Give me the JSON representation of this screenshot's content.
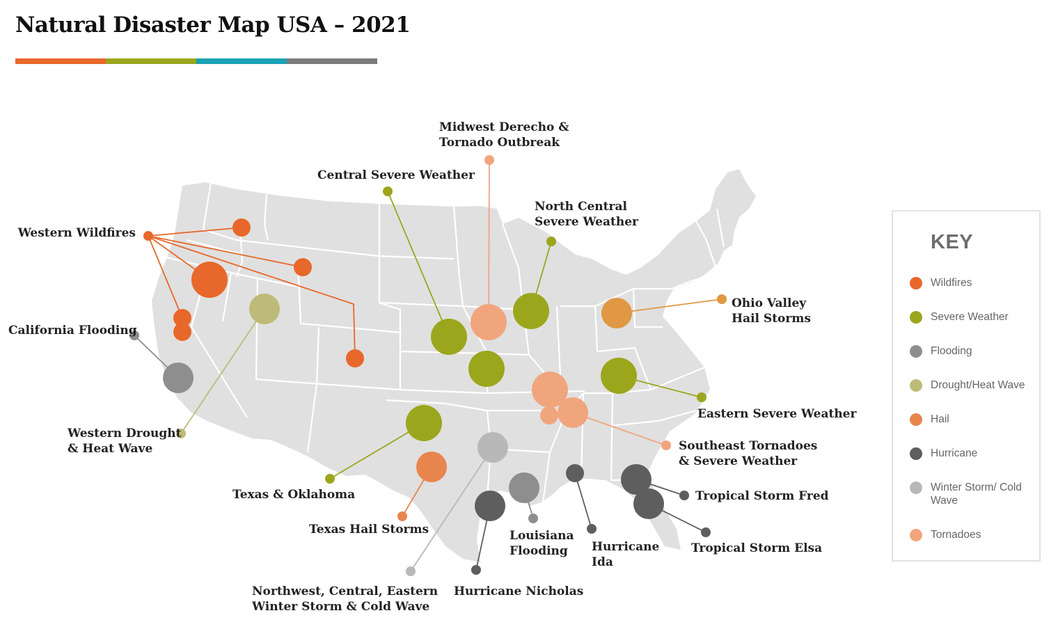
{
  "title": "Natural Disaster Map USA – 2021",
  "title_bar_colors": [
    "#e8672a",
    "#9ca61d",
    "#1aa0b2",
    "#7a7a7a"
  ],
  "colors": {
    "map_fill": "#e0e0e0",
    "map_border": "#ffffff",
    "Wildfires": "#e8672a",
    "Severe Weather": "#9ca61d",
    "Flooding": "#8e8e8e",
    "Drought/Heat Wave": "#bdbb77",
    "Hail": "#e8854e",
    "Hurricane": "#5e5e5e",
    "Winter Storm/Cold Wave": "#b8b8b8",
    "Tornadoes": "#f0a57d",
    "Ohio Valley Hail": "#e09844"
  },
  "events": {
    "western_wildfires": {
      "label_lines": [
        "Western Wildfires"
      ],
      "category": "Wildfires"
    },
    "california_flooding": {
      "label_lines": [
        "California Flooding"
      ],
      "category": "Flooding"
    },
    "western_drought": {
      "label_lines": [
        "Western Drought",
        "& Heat Wave"
      ],
      "category": "Drought/Heat Wave"
    },
    "central_severe": {
      "label_lines": [
        "Central Severe Weather"
      ],
      "category": "Severe Weather"
    },
    "midwest_derecho": {
      "label_lines": [
        "Midwest Derecho &",
        "Tornado Outbreak"
      ],
      "category": "Tornadoes"
    },
    "north_central_severe": {
      "label_lines": [
        "North Central",
        "Severe Weather"
      ],
      "category": "Severe Weather"
    },
    "ohio_valley_hail": {
      "label_lines": [
        "Ohio Valley",
        "Hail Storms"
      ],
      "category": "Hail"
    },
    "eastern_severe": {
      "label_lines": [
        "Eastern Severe Weather"
      ],
      "category": "Severe Weather"
    },
    "southeast_tornadoes": {
      "label_lines": [
        "Southeast Tornadoes",
        "& Severe Weather"
      ],
      "category": "Tornadoes"
    },
    "texas_oklahoma": {
      "label_lines": [
        "Texas & Oklahoma"
      ],
      "category": "Severe Weather"
    },
    "texas_hail": {
      "label_lines": [
        "Texas Hail Storms"
      ],
      "category": "Hail"
    },
    "winter_storm": {
      "label_lines": [
        "Northwest, Central, Eastern",
        "Winter Storm & Cold Wave"
      ],
      "category": "Winter Storm/Cold Wave"
    },
    "hurricane_nicholas": {
      "label_lines": [
        "Hurricane Nicholas"
      ],
      "category": "Hurricane"
    },
    "louisiana_flooding": {
      "label_lines": [
        "Louisiana",
        "Flooding"
      ],
      "category": "Flooding"
    },
    "hurricane_ida": {
      "label_lines": [
        "Hurricane",
        "Ida"
      ],
      "category": "Hurricane"
    },
    "tropical_storm_fred": {
      "label_lines": [
        "Tropical Storm Fred"
      ],
      "category": "Hurricane"
    },
    "tropical_storm_elsa": {
      "label_lines": [
        "Tropical Storm Elsa"
      ],
      "category": "Hurricane"
    }
  },
  "key": {
    "title": "KEY",
    "items": [
      {
        "label": "Wildfires",
        "color": "#e8672a",
        "icon": "circle"
      },
      {
        "label": "Severe Weather",
        "color": "#9ca61d",
        "icon": "circle"
      },
      {
        "label": "Flooding",
        "color": "#8e8e8e",
        "icon": "circle"
      },
      {
        "label": "Drought/Heat Wave",
        "color": "#bdbb77",
        "icon": "circle"
      },
      {
        "label": "Hail",
        "color": "#e8854e",
        "icon": "circle"
      },
      {
        "label": "Hurricane",
        "color": "#5e5e5e",
        "icon": "circle"
      },
      {
        "label": "Winter Storm/ Cold Wave",
        "color": "#b8b8b8",
        "icon": "circle"
      },
      {
        "label": "Tornadoes",
        "color": "#f0a57d",
        "icon": "circle"
      }
    ]
  }
}
